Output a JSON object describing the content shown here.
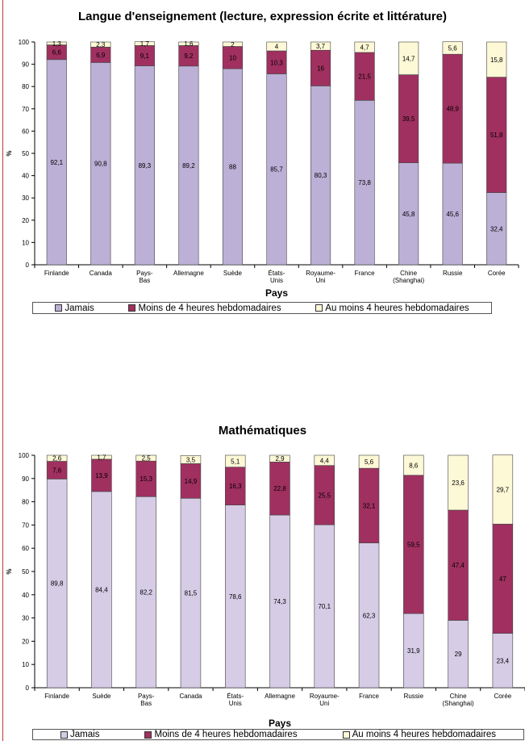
{
  "chart_data": [
    {
      "type": "bar",
      "stacked": true,
      "title": "Langue d'enseignement (lecture, expression écrite et littérature)",
      "xlabel": "Pays",
      "ylabel": "%",
      "ylim": [
        0,
        100
      ],
      "yticks": [
        0,
        10,
        20,
        30,
        40,
        50,
        60,
        70,
        80,
        90,
        100
      ],
      "grid": false,
      "legend_placement": "bottom",
      "categories": [
        "Finlande",
        "Canada",
        "Pays-Bas",
        "Allemagne",
        "Suède",
        "États-Unis",
        "Royaume-Uni",
        "France",
        "Chine (Shanghai)",
        "Russie",
        "Corée"
      ],
      "series": [
        {
          "name": "Jamais",
          "color": "#bcb0d6",
          "values": [
            92.1,
            90.8,
            89.3,
            89.2,
            88,
            85.7,
            80.3,
            73.8,
            45.8,
            45.6,
            32.4
          ],
          "labels": [
            "92,1",
            "90,8",
            "89,3",
            "89,2",
            "88",
            "85,7",
            "80,3",
            "73,8",
            "45,8",
            "45,6",
            "32,4"
          ]
        },
        {
          "name": "Moins de 4 heures hebdomadaires",
          "color": "#a03060",
          "values": [
            6.6,
            6.9,
            9.1,
            9.2,
            10,
            10.3,
            16,
            21.5,
            39.5,
            48.9,
            51.8
          ],
          "labels": [
            "6,6",
            "6,9",
            "9,1",
            "9,2",
            "10",
            "10,3",
            "16",
            "21,5",
            "39,5",
            "48,9",
            "51,8"
          ]
        },
        {
          "name": "Au moins 4 heures hebdomadaires",
          "color": "#fdf8d6",
          "values": [
            1.3,
            2.3,
            1.7,
            1.6,
            2,
            4,
            3.7,
            4.7,
            14.7,
            5.6,
            15.8
          ],
          "labels": [
            "1,3",
            "2,3",
            "1,7",
            "1,6",
            "2",
            "4",
            "3,7",
            "4,7",
            "14,7",
            "5,6",
            "15,8"
          ]
        }
      ]
    },
    {
      "type": "bar",
      "stacked": true,
      "title": "Mathématiques",
      "xlabel": "Pays",
      "ylabel": "%",
      "ylim": [
        0,
        100
      ],
      "yticks": [
        0,
        10,
        20,
        30,
        40,
        50,
        60,
        70,
        80,
        90,
        100
      ],
      "grid": false,
      "legend_placement": "bottom",
      "categories": [
        "Finlande",
        "Suède",
        "Pays-Bas",
        "Canada",
        "États-Unis",
        "Allemagne",
        "Royaume-Uni",
        "France",
        "Russie",
        "Chine (Shanghai)",
        "Corée"
      ],
      "series": [
        {
          "name": "Jamais",
          "color": "#d6cce6",
          "values": [
            89.8,
            84.4,
            82.2,
            81.5,
            78.6,
            74.3,
            70.1,
            62.3,
            31.9,
            29,
            23.4
          ],
          "labels": [
            "89,8",
            "84,4",
            "82,2",
            "81,5",
            "78,6",
            "74,3",
            "70,1",
            "62,3",
            "31,9",
            "29",
            "23,4"
          ]
        },
        {
          "name": "Moins de 4 heures hebdomadaires",
          "color": "#a03060",
          "values": [
            7.6,
            13.9,
            15.3,
            14.9,
            16.3,
            22.8,
            25.5,
            32.1,
            59.5,
            47.4,
            47
          ],
          "labels": [
            "7,6",
            "13,9",
            "15,3",
            "14,9",
            "16,3",
            "22,8",
            "25,5",
            "32,1",
            "59,5",
            "47,4",
            "47"
          ]
        },
        {
          "name": "Au moins 4 heures hebdomadaires",
          "color": "#fdf8d6",
          "values": [
            2.6,
            1.7,
            2.5,
            3.5,
            5.1,
            2.9,
            4.4,
            5.6,
            8.6,
            23.6,
            29.7
          ],
          "labels": [
            "2,6",
            "1,7",
            "2,5",
            "3,5",
            "5,1",
            "2,9",
            "4,4",
            "5,6",
            "8,6",
            "23,6",
            "29,7"
          ]
        }
      ]
    }
  ]
}
